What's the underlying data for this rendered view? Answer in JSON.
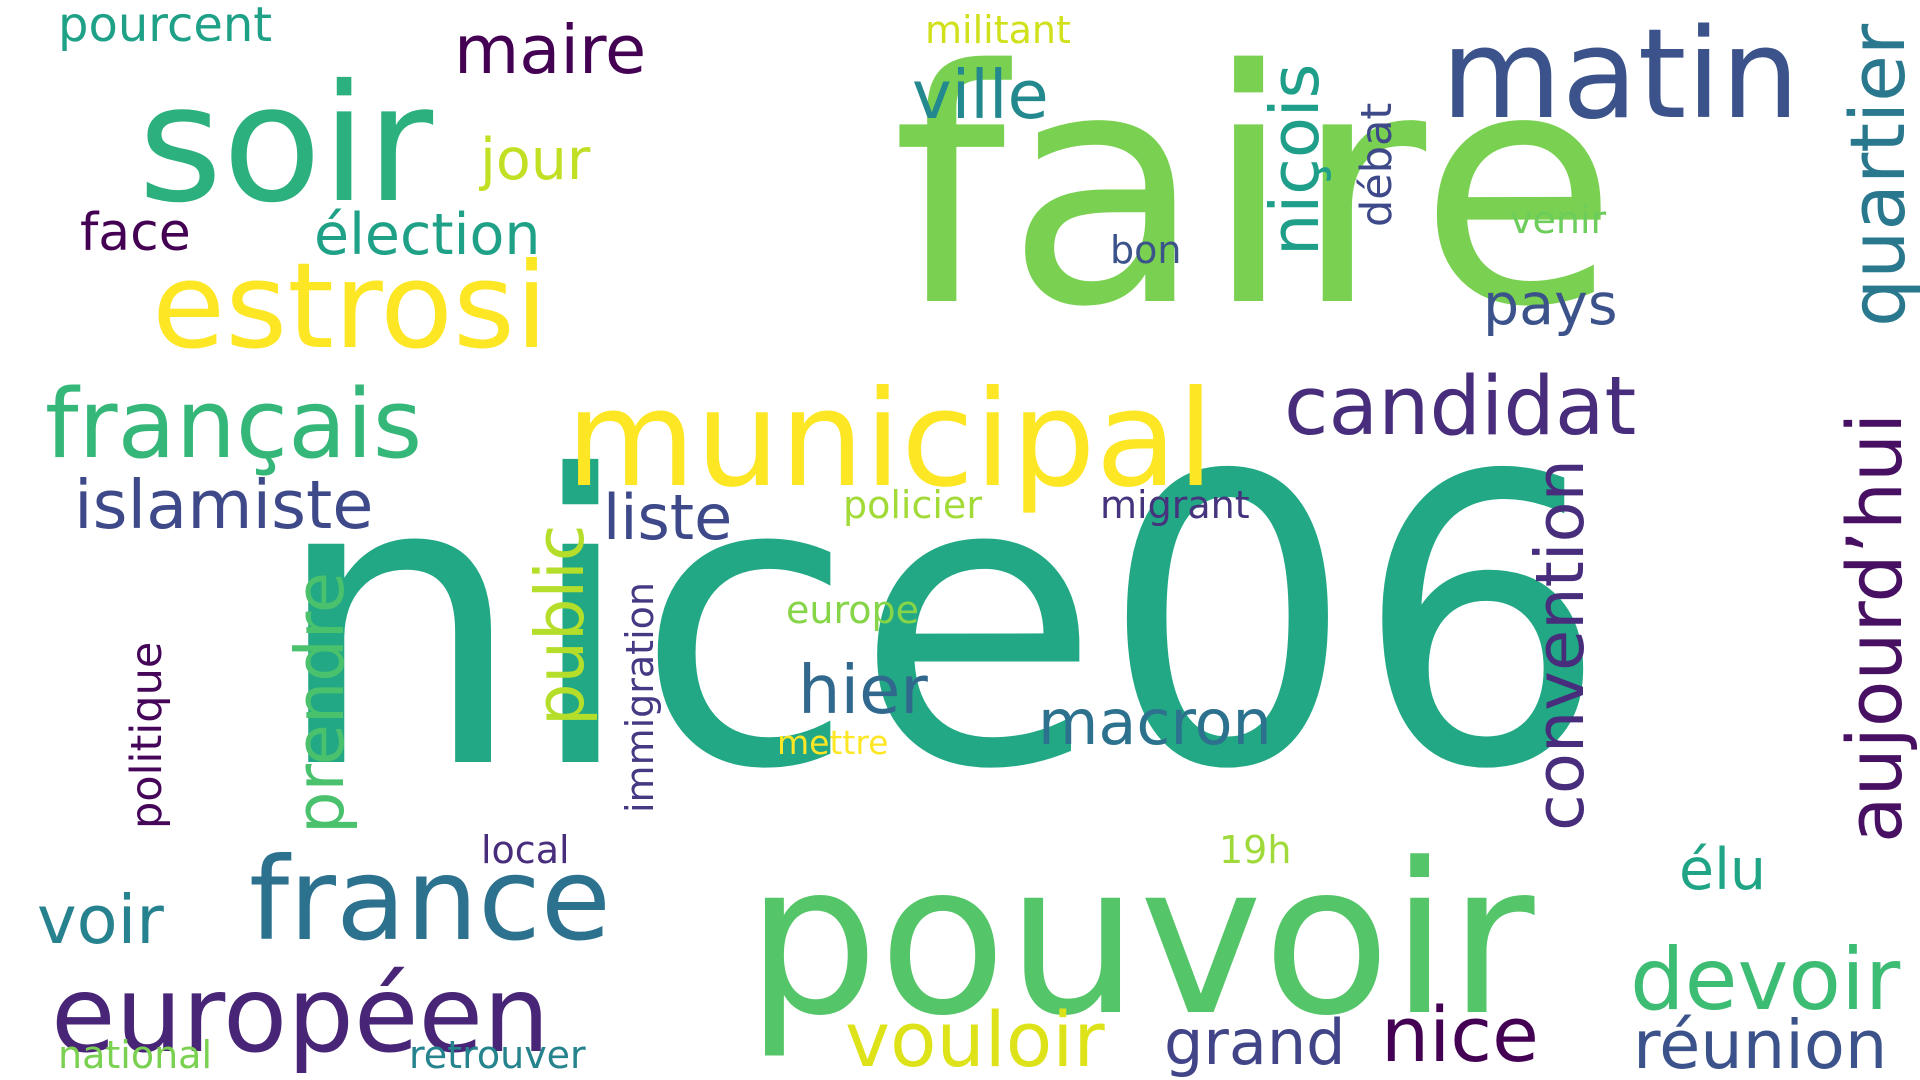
{
  "wordcloud": {
    "words": [
      {
        "text": "faire",
        "color": "#7ad151"
      },
      {
        "text": "nice06",
        "color": "#22a884"
      },
      {
        "text": "pouvoir",
        "color": "#54c568"
      },
      {
        "text": "municipal",
        "color": "#fde725"
      },
      {
        "text": "soir",
        "color": "#2cb17e"
      },
      {
        "text": "matin",
        "color": "#3b528b"
      },
      {
        "text": "estrosi",
        "color": "#fde725"
      },
      {
        "text": "france",
        "color": "#2c728e"
      },
      {
        "text": "européen",
        "color": "#482576"
      },
      {
        "text": "français",
        "color": "#35b779"
      },
      {
        "text": "aujourd’hui",
        "color": "#471063"
      },
      {
        "text": "quartier",
        "color": "#2a788e"
      },
      {
        "text": "candidat",
        "color": "#472d7b"
      },
      {
        "text": "vouloir",
        "color": "#dde318"
      },
      {
        "text": "devoir",
        "color": "#3dbc74"
      },
      {
        "text": "nice",
        "color": "#440154"
      },
      {
        "text": "réunion",
        "color": "#3b528b"
      },
      {
        "text": "islamiste",
        "color": "#3e4989"
      },
      {
        "text": "maire",
        "color": "#440154"
      },
      {
        "text": "ville",
        "color": "#23898e"
      },
      {
        "text": "niçois",
        "color": "#1f9e89"
      },
      {
        "text": "grand",
        "color": "#414487"
      },
      {
        "text": "voir",
        "color": "#26828e"
      },
      {
        "text": "convention",
        "color": "#472d7b"
      },
      {
        "text": "public",
        "color": "#b5de2b"
      },
      {
        "text": "prendre",
        "color": "#4ac16d"
      },
      {
        "text": "macron",
        "color": "#2c728e"
      },
      {
        "text": "hier",
        "color": "#31688e"
      },
      {
        "text": "liste",
        "color": "#3e4989"
      },
      {
        "text": "élection",
        "color": "#1fa187"
      },
      {
        "text": "jour",
        "color": "#c2df23"
      },
      {
        "text": "pays",
        "color": "#3b528b"
      },
      {
        "text": "face",
        "color": "#440154"
      },
      {
        "text": "élu",
        "color": "#20a486"
      },
      {
        "text": "pourcent",
        "color": "#1fa187"
      },
      {
        "text": "militant",
        "color": "#d0e11c"
      },
      {
        "text": "policier",
        "color": "#a2da37"
      },
      {
        "text": "migrant",
        "color": "#46337e"
      },
      {
        "text": "europe",
        "color": "#86d549"
      },
      {
        "text": "mettre",
        "color": "#fde725"
      },
      {
        "text": "immigration",
        "color": "#443983"
      },
      {
        "text": "politique",
        "color": "#450559"
      },
      {
        "text": "local",
        "color": "#472d7b"
      },
      {
        "text": "19h",
        "color": "#9fda3a"
      },
      {
        "text": "national",
        "color": "#7ad151"
      },
      {
        "text": "retrouver",
        "color": "#25838e"
      },
      {
        "text": "venir",
        "color": "#6ccd5a"
      },
      {
        "text": "bon",
        "color": "#3b528b"
      },
      {
        "text": "débat",
        "color": "#3e4989"
      }
    ]
  }
}
